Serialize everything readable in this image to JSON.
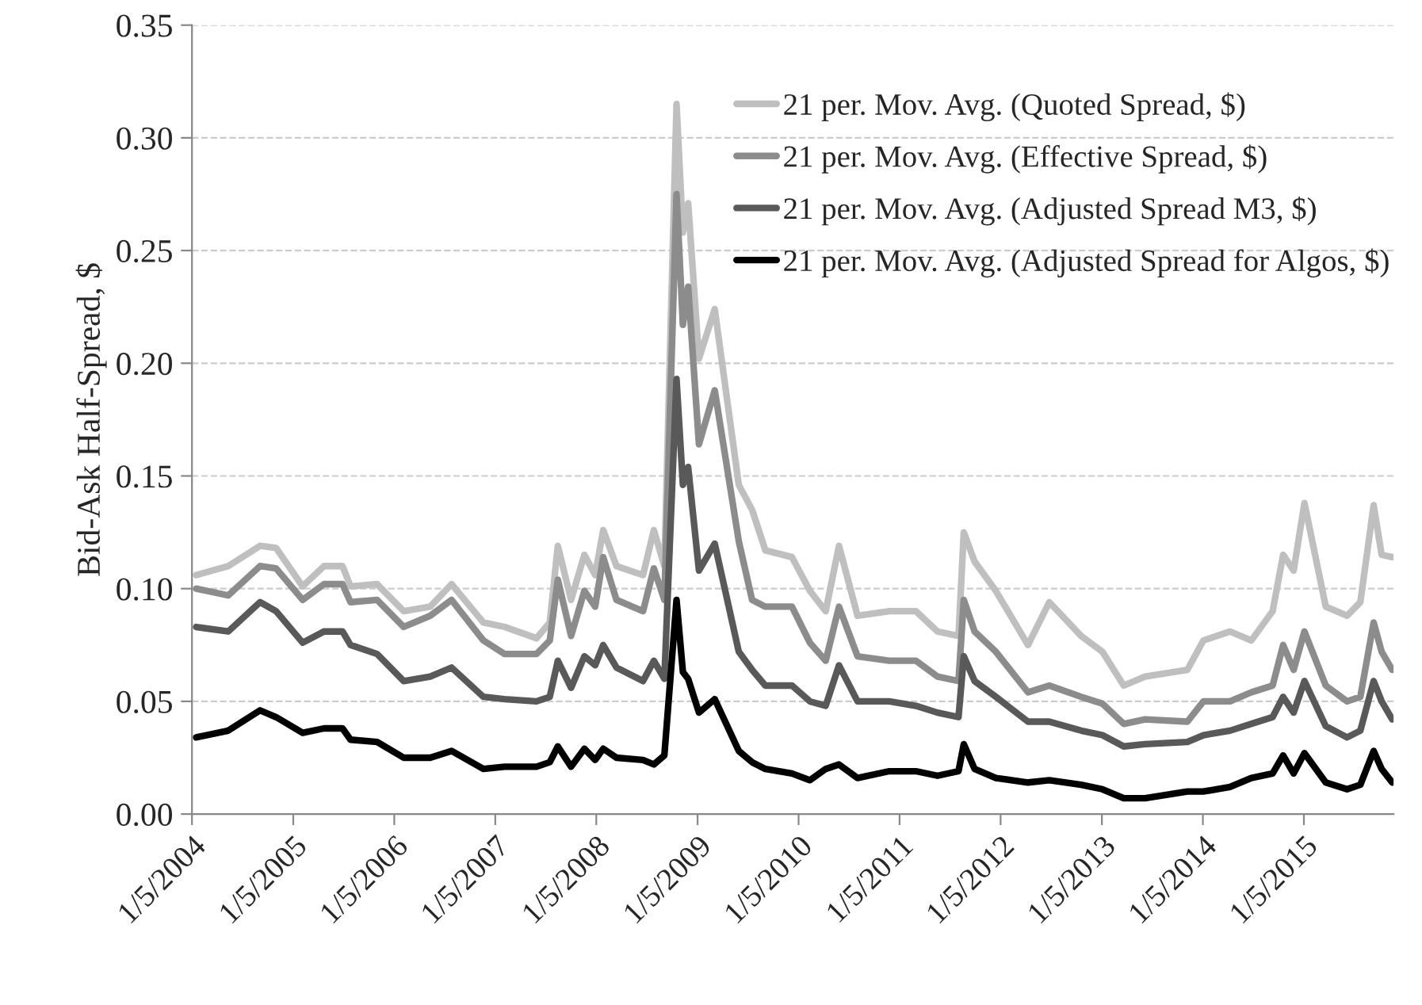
{
  "chart_data": {
    "type": "line",
    "ylabel": "Bid-Ask Half-Spread, $",
    "x": [
      "2004-01-20",
      "2004-05-15",
      "2004-09-07",
      "2004-11-04",
      "2005-02-08",
      "2005-04-26",
      "2005-07-02",
      "2005-07-31",
      "2005-11-04",
      "2006-02-08",
      "2006-05-15",
      "2006-07-31",
      "2006-11-23",
      "2007-02-08",
      "2007-06-03",
      "2007-07-21",
      "2007-08-19",
      "2007-10-06",
      "2007-11-23",
      "2008-01-01",
      "2008-01-30",
      "2008-03-18",
      "2008-06-22",
      "2008-07-31",
      "2008-09-07",
      "2008-10-21",
      "2008-11-13",
      "2008-12-02",
      "2009-01-10",
      "2009-03-08",
      "2009-06-03",
      "2009-07-21",
      "2009-09-07",
      "2009-12-12",
      "2010-02-15",
      "2010-04-13",
      "2010-05-31",
      "2010-08-06",
      "2010-11-29",
      "2011-03-05",
      "2011-05-22",
      "2011-08-06",
      "2011-08-25",
      "2011-10-03",
      "2011-12-19",
      "2012-04-13",
      "2012-06-29",
      "2012-10-22",
      "2013-01-07",
      "2013-03-25",
      "2013-06-10",
      "2013-11-10",
      "2014-01-07",
      "2014-04-13",
      "2014-06-29",
      "2014-09-14",
      "2014-10-22",
      "2014-11-29",
      "2015-01-07",
      "2015-03-25",
      "2015-06-10",
      "2015-07-28",
      "2015-09-14",
      "2015-10-13",
      "2015-11-20"
    ],
    "series": [
      {
        "name": "21 per. Mov. Avg. (Quoted Spread, $)",
        "color": "#bfbfbf",
        "values": [
          0.106,
          0.11,
          0.119,
          0.118,
          0.101,
          0.11,
          0.11,
          0.101,
          0.102,
          0.09,
          0.092,
          0.102,
          0.085,
          0.083,
          0.078,
          0.085,
          0.119,
          0.095,
          0.115,
          0.106,
          0.126,
          0.11,
          0.106,
          0.126,
          0.11,
          0.315,
          0.258,
          0.271,
          0.202,
          0.224,
          0.146,
          0.135,
          0.117,
          0.114,
          0.099,
          0.09,
          0.119,
          0.088,
          0.09,
          0.09,
          0.081,
          0.079,
          0.125,
          0.112,
          0.099,
          0.075,
          0.094,
          0.079,
          0.072,
          0.057,
          0.061,
          0.064,
          0.077,
          0.081,
          0.077,
          0.09,
          0.115,
          0.108,
          0.138,
          0.092,
          0.088,
          0.094,
          0.137,
          0.115,
          0.114
        ]
      },
      {
        "name": "21 per. Mov. Avg. (Effective Spread, $)",
        "color": "#8c8c8c",
        "values": [
          0.1,
          0.097,
          0.11,
          0.109,
          0.095,
          0.102,
          0.102,
          0.094,
          0.095,
          0.083,
          0.088,
          0.095,
          0.077,
          0.071,
          0.071,
          0.077,
          0.104,
          0.079,
          0.099,
          0.092,
          0.114,
          0.095,
          0.09,
          0.109,
          0.095,
          0.275,
          0.217,
          0.234,
          0.164,
          0.188,
          0.121,
          0.095,
          0.092,
          0.092,
          0.076,
          0.068,
          0.092,
          0.07,
          0.068,
          0.068,
          0.061,
          0.059,
          0.095,
          0.081,
          0.072,
          0.054,
          0.057,
          0.052,
          0.049,
          0.04,
          0.042,
          0.041,
          0.05,
          0.05,
          0.054,
          0.057,
          0.075,
          0.064,
          0.081,
          0.057,
          0.05,
          0.052,
          0.085,
          0.072,
          0.064
        ]
      },
      {
        "name": "21 per. Mov. Avg. (Adjusted Spread M3, $)",
        "color": "#595959",
        "values": [
          0.083,
          0.081,
          0.094,
          0.09,
          0.076,
          0.081,
          0.081,
          0.075,
          0.071,
          0.059,
          0.061,
          0.065,
          0.052,
          0.051,
          0.05,
          0.052,
          0.068,
          0.056,
          0.07,
          0.066,
          0.075,
          0.065,
          0.059,
          0.068,
          0.06,
          0.193,
          0.146,
          0.154,
          0.108,
          0.12,
          0.072,
          0.064,
          0.057,
          0.057,
          0.05,
          0.048,
          0.066,
          0.05,
          0.05,
          0.048,
          0.045,
          0.043,
          0.07,
          0.059,
          0.052,
          0.041,
          0.041,
          0.037,
          0.035,
          0.03,
          0.031,
          0.032,
          0.035,
          0.037,
          0.04,
          0.043,
          0.052,
          0.045,
          0.059,
          0.039,
          0.034,
          0.037,
          0.059,
          0.05,
          0.042
        ]
      },
      {
        "name": "21 per. Mov. Avg. (Adjusted Spread for Algos, $)",
        "color": "#000000",
        "values": [
          0.034,
          0.037,
          0.046,
          0.043,
          0.036,
          0.038,
          0.038,
          0.033,
          0.032,
          0.025,
          0.025,
          0.028,
          0.02,
          0.021,
          0.021,
          0.023,
          0.03,
          0.021,
          0.029,
          0.024,
          0.029,
          0.025,
          0.024,
          0.022,
          0.026,
          0.095,
          0.063,
          0.06,
          0.045,
          0.051,
          0.028,
          0.023,
          0.02,
          0.018,
          0.015,
          0.02,
          0.022,
          0.016,
          0.019,
          0.019,
          0.017,
          0.019,
          0.031,
          0.02,
          0.016,
          0.014,
          0.015,
          0.013,
          0.011,
          0.007,
          0.007,
          0.01,
          0.01,
          0.012,
          0.016,
          0.018,
          0.026,
          0.018,
          0.027,
          0.014,
          0.011,
          0.013,
          0.028,
          0.02,
          0.014
        ]
      }
    ],
    "xlim": [
      "2004-01-05",
      "2015-11-25"
    ],
    "xticks": [
      {
        "value": "2004-01-05",
        "label": "1/5/2004"
      },
      {
        "value": "2005-01-05",
        "label": "1/5/2005"
      },
      {
        "value": "2006-01-05",
        "label": "1/5/2006"
      },
      {
        "value": "2007-01-05",
        "label": "1/5/2007"
      },
      {
        "value": "2008-01-05",
        "label": "1/5/2008"
      },
      {
        "value": "2009-01-05",
        "label": "1/5/2009"
      },
      {
        "value": "2010-01-05",
        "label": "1/5/2010"
      },
      {
        "value": "2011-01-05",
        "label": "1/5/2011"
      },
      {
        "value": "2012-01-05",
        "label": "1/5/2012"
      },
      {
        "value": "2013-01-05",
        "label": "1/5/2013"
      },
      {
        "value": "2014-01-05",
        "label": "1/5/2014"
      },
      {
        "value": "2015-01-05",
        "label": "1/5/2015"
      }
    ],
    "ylim": [
      0,
      0.35
    ],
    "yticks": [
      {
        "value": 0,
        "label": "0.00"
      },
      {
        "value": 0.05,
        "label": "0.05"
      },
      {
        "value": 0.1,
        "label": "0.10"
      },
      {
        "value": 0.15,
        "label": "0.15"
      },
      {
        "value": 0.2,
        "label": "0.20"
      },
      {
        "value": 0.25,
        "label": "0.25"
      },
      {
        "value": 0.3,
        "label": "0.30"
      },
      {
        "value": 0.35,
        "label": "0.35"
      }
    ],
    "grid": "y",
    "legend": "top right",
    "line_style": "solid"
  }
}
